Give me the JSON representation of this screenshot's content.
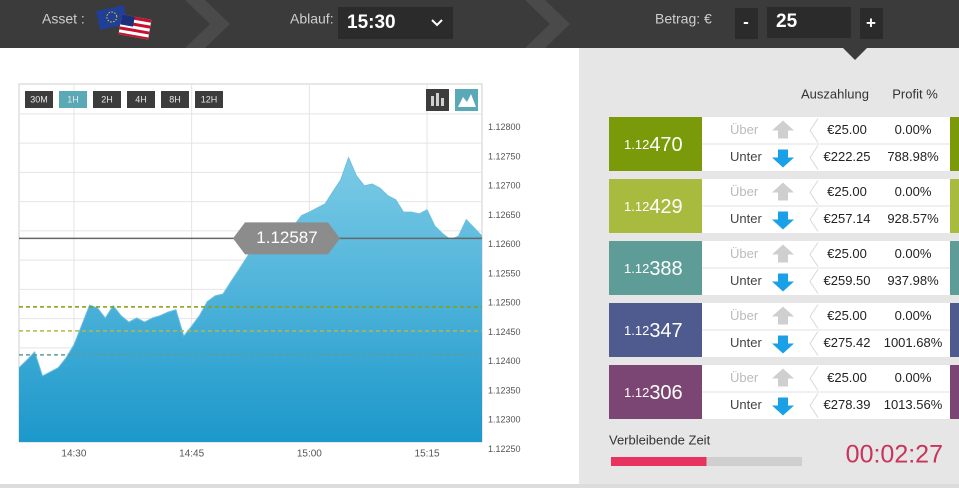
{
  "header": {
    "asset_label": "Asset :",
    "expiry_label": "Ablauf:",
    "expiry_value": "15:30",
    "amount_label": "Betrag: €",
    "amount_minus": "-",
    "amount_value": "25",
    "amount_plus": "+"
  },
  "chart_data": {
    "type": "area",
    "color": "#2ea0d0",
    "timeframes": [
      "30M",
      "1H",
      "2H",
      "4H",
      "8H",
      "12H"
    ],
    "selected_timeframe": 1,
    "x": [
      "14:23",
      "14:24",
      "14:25",
      "14:26",
      "14:27",
      "14:28",
      "14:29",
      "14:30",
      "14:31",
      "14:32",
      "14:33",
      "14:34",
      "14:35",
      "14:36",
      "14:37",
      "14:38",
      "14:39",
      "14:40",
      "14:41",
      "14:42",
      "14:43",
      "14:44",
      "14:45",
      "14:46",
      "14:47",
      "14:48",
      "14:49",
      "14:50",
      "14:51",
      "14:52",
      "14:53",
      "14:54",
      "14:55",
      "14:56",
      "14:57",
      "14:58",
      "14:59",
      "15:00",
      "15:01",
      "15:02",
      "15:03",
      "15:04",
      "15:05",
      "15:06",
      "15:07",
      "15:08",
      "15:09",
      "15:10",
      "15:11",
      "15:12",
      "15:13",
      "15:14",
      "15:15",
      "15:16",
      "15:17",
      "15:18",
      "15:19",
      "15:20",
      "15:21",
      "15:22"
    ],
    "values": [
      1.12366,
      1.12379,
      1.12393,
      1.12352,
      1.12359,
      1.12366,
      1.12383,
      1.12405,
      1.12439,
      1.12473,
      1.12468,
      1.12451,
      1.12472,
      1.12455,
      1.12444,
      1.12451,
      1.12444,
      1.12451,
      1.12455,
      1.12461,
      1.12465,
      1.1242,
      1.12437,
      1.12455,
      1.12479,
      1.12489,
      1.12492,
      1.12513,
      1.12533,
      1.12554,
      1.12576,
      1.12585,
      1.12605,
      1.12608,
      1.12598,
      1.12608,
      1.12626,
      1.12632,
      1.12639,
      1.12646,
      1.12667,
      1.12687,
      1.12725,
      1.12694,
      1.12677,
      1.1268,
      1.12673,
      1.1266,
      1.12653,
      1.12632,
      1.12632,
      1.12629,
      1.12636,
      1.12608,
      1.12595,
      1.12585,
      1.12591,
      1.12619,
      1.12605,
      1.12591
    ],
    "xlim": [
      "14:23",
      "15:22"
    ],
    "xticks": [
      "14:30",
      "14:45",
      "15:00",
      "15:15"
    ],
    "ylim": [
      1.12239,
      1.12851
    ],
    "yticks": [
      {
        "value": 1.128,
        "label": "1.12800"
      },
      {
        "value": 1.1275,
        "label": "1.12750"
      },
      {
        "value": 1.127,
        "label": "1.12700"
      },
      {
        "value": 1.1265,
        "label": "1.12650"
      },
      {
        "value": 1.126,
        "label": "1.12600"
      },
      {
        "value": 1.1255,
        "label": "1.12550"
      },
      {
        "value": 1.125,
        "label": "1.12500"
      },
      {
        "value": 1.1245,
        "label": "1.12450"
      },
      {
        "value": 1.124,
        "label": "1.12400"
      },
      {
        "value": 1.1235,
        "label": "1.12350"
      },
      {
        "value": 1.123,
        "label": "1.12300"
      },
      {
        "value": 1.1225,
        "label": "1.12250"
      }
    ],
    "grid": true,
    "current_price": {
      "value": 1.12587,
      "label": "1.12587"
    },
    "levels": [
      {
        "value": 1.1247,
        "color": "#8a9a10"
      },
      {
        "value": 1.12429,
        "color": "#b2b84a"
      },
      {
        "value": 1.12388,
        "color": "#5e9c97"
      }
    ]
  },
  "panel": {
    "headers": [
      "Auszahlung",
      "Profit %"
    ],
    "rows": [
      {
        "strike_prefix": "1.12",
        "strike_suffix": "470",
        "color": "#7a9a0a",
        "up": {
          "label": "Über",
          "payout": "€25.00",
          "profit": "0.00%"
        },
        "down": {
          "label": "Unter",
          "payout": "€222.25",
          "profit": "788.98%"
        }
      },
      {
        "strike_prefix": "1.12",
        "strike_suffix": "429",
        "color": "#a9bb3f",
        "up": {
          "label": "Über",
          "payout": "€25.00",
          "profit": "0.00%"
        },
        "down": {
          "label": "Unter",
          "payout": "€257.14",
          "profit": "928.57%"
        }
      },
      {
        "strike_prefix": "1.12",
        "strike_suffix": "388",
        "color": "#5e9c97",
        "up": {
          "label": "Über",
          "payout": "€25.00",
          "profit": "0.00%"
        },
        "down": {
          "label": "Unter",
          "payout": "€259.50",
          "profit": "937.98%"
        }
      },
      {
        "strike_prefix": "1.12",
        "strike_suffix": "347",
        "color": "#4f5b8e",
        "up": {
          "label": "Über",
          "payout": "€25.00",
          "profit": "0.00%"
        },
        "down": {
          "label": "Unter",
          "payout": "€275.42",
          "profit": "1001.68%"
        }
      },
      {
        "strike_prefix": "1.12",
        "strike_suffix": "306",
        "color": "#7b4673",
        "up": {
          "label": "Über",
          "payout": "€25.00",
          "profit": "0.00%"
        },
        "down": {
          "label": "Unter",
          "payout": "€278.39",
          "profit": "1013.56%"
        }
      }
    ],
    "timer_label": "Verbleibende Zeit",
    "timer": "00:02:27",
    "progress": 50
  }
}
